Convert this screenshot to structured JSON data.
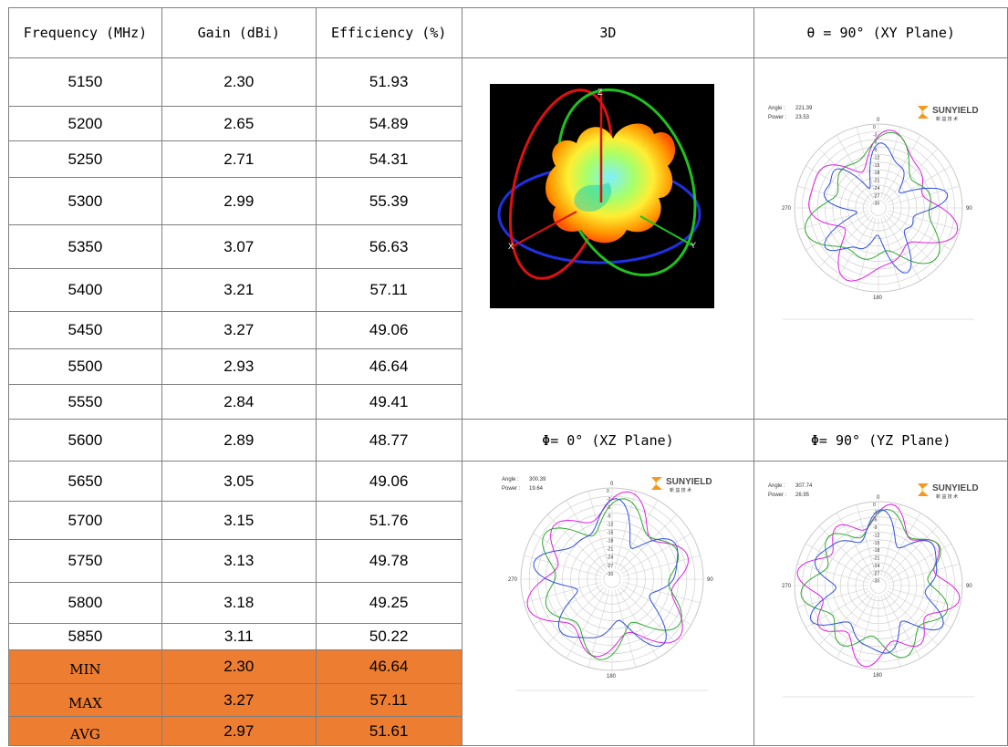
{
  "table": {
    "headers": {
      "frequency": "Frequency (MHz)",
      "gain": "Gain (dBi)",
      "efficiency": "Efficiency (%)",
      "view3d": "3D",
      "xy": "θ = 90° (XY Plane)",
      "xz": "Φ= 0° (XZ Plane)",
      "yz": "Φ= 90° (YZ Plane)"
    },
    "rows": [
      {
        "freq": "5150",
        "gain": "2.30",
        "eff": "51.93"
      },
      {
        "freq": "5200",
        "gain": "2.65",
        "eff": "54.89"
      },
      {
        "freq": "5250",
        "gain": "2.71",
        "eff": "54.31"
      },
      {
        "freq": "5300",
        "gain": "2.99",
        "eff": "55.39"
      },
      {
        "freq": "5350",
        "gain": "3.07",
        "eff": "56.63"
      },
      {
        "freq": "5400",
        "gain": "3.21",
        "eff": "57.11"
      },
      {
        "freq": "5450",
        "gain": "3.27",
        "eff": "49.06"
      },
      {
        "freq": "5500",
        "gain": "2.93",
        "eff": "46.64"
      },
      {
        "freq": "5550",
        "gain": "2.84",
        "eff": "49.41"
      },
      {
        "freq": "5600",
        "gain": "2.89",
        "eff": "48.77"
      },
      {
        "freq": "5650",
        "gain": "3.05",
        "eff": "49.06"
      },
      {
        "freq": "5700",
        "gain": "3.15",
        "eff": "51.76"
      },
      {
        "freq": "5750",
        "gain": "3.13",
        "eff": "49.78"
      },
      {
        "freq": "5800",
        "gain": "3.18",
        "eff": "49.25"
      },
      {
        "freq": "5850",
        "gain": "3.11",
        "eff": "50.22"
      }
    ],
    "stats": [
      {
        "label": "MIN",
        "gain": "2.30",
        "eff": "46.64"
      },
      {
        "label": "MAX",
        "gain": "3.27",
        "eff": "57.11"
      },
      {
        "label": "AVG",
        "gain": "2.97",
        "eff": "51.61"
      }
    ],
    "stat_color": "#ed7d31"
  },
  "view3d": {
    "axis_z": "Z",
    "axis_x": "X",
    "axis_y": "Y"
  },
  "plots": {
    "brand": "SUNYIELD",
    "brand_sub": "新 益 技 术",
    "angle_label": "Angle :",
    "power_label": "Power :",
    "xy": {
      "angle": "221.39",
      "power": "23.53"
    },
    "xz": {
      "angle": "300.39",
      "power": "19.64"
    },
    "yz": {
      "angle": "307.74",
      "power": "26.95"
    },
    "labels": {
      "top": "0",
      "right": "90",
      "bottom": "180",
      "left": "270"
    },
    "rings": [
      "0",
      "-3",
      "-6",
      "-9",
      "-12",
      "-15",
      "-18",
      "-21",
      "-24",
      "-27",
      "-30"
    ],
    "series_colors": [
      "#e020e0",
      "#2fa82f",
      "#3050e0"
    ]
  }
}
